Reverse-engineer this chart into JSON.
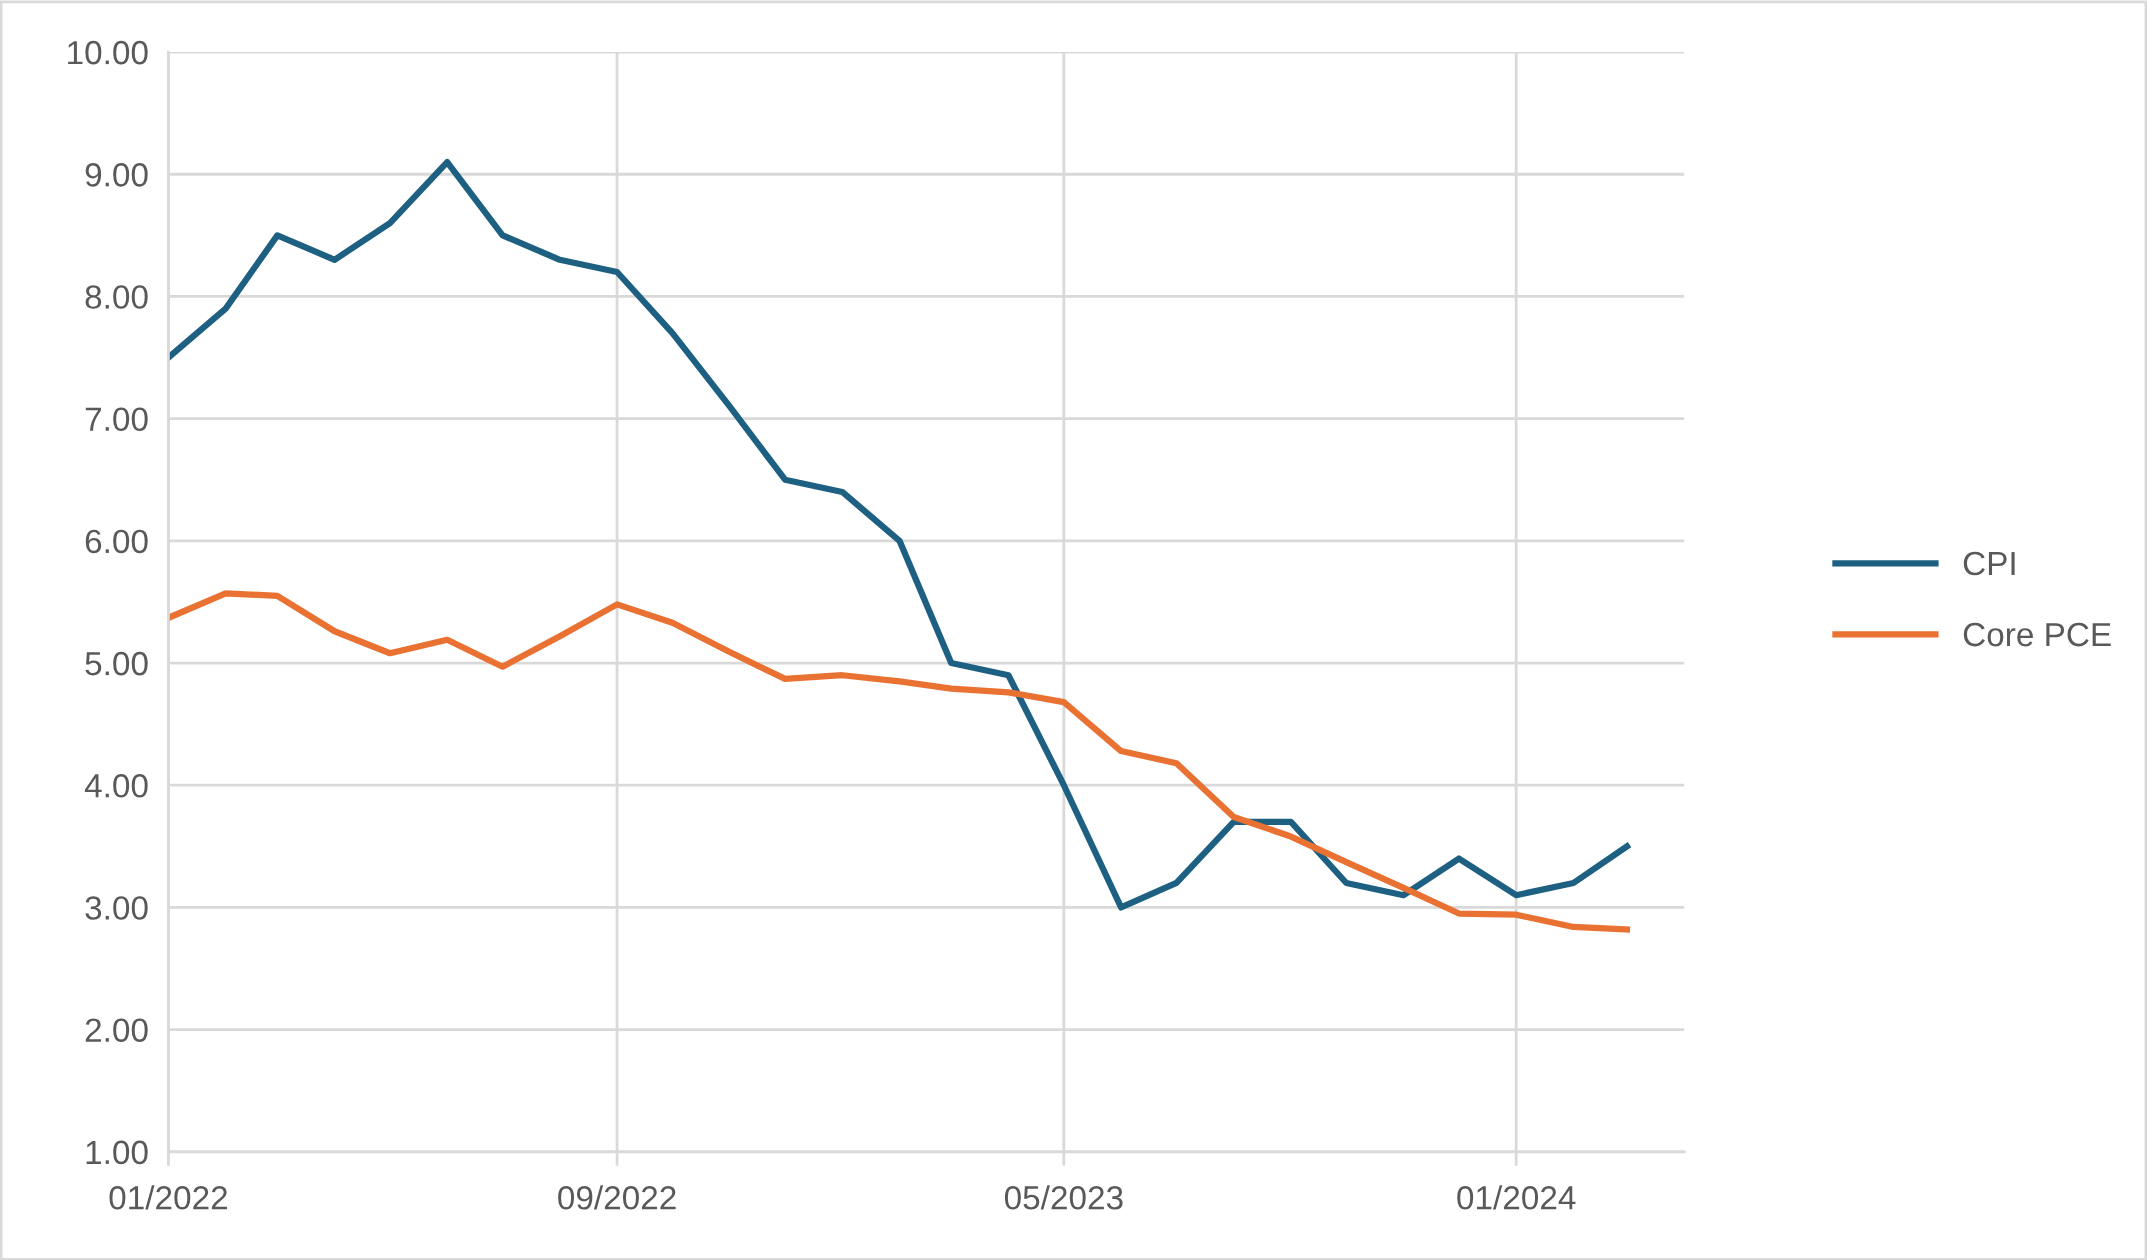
{
  "chart_data": {
    "type": "line",
    "x": [
      "2022-01",
      "2022-02",
      "2022-03",
      "2022-04",
      "2022-05",
      "2022-06",
      "2022-07",
      "2022-08",
      "2022-09",
      "2022-10",
      "2022-11",
      "2022-12",
      "2023-01",
      "2023-02",
      "2023-03",
      "2023-04",
      "2023-05",
      "2023-06",
      "2023-07",
      "2023-08",
      "2023-09",
      "2023-10",
      "2023-11",
      "2023-12",
      "2024-01",
      "2024-02",
      "2024-03"
    ],
    "series": [
      {
        "name": "CPI",
        "color": "#1d6082",
        "values": [
          7.5,
          7.9,
          8.5,
          8.3,
          8.6,
          9.1,
          8.5,
          8.3,
          8.2,
          7.7,
          7.1,
          6.5,
          6.4,
          6.0,
          5.0,
          4.9,
          4.0,
          3.0,
          3.2,
          3.7,
          3.7,
          3.2,
          3.1,
          3.4,
          3.1,
          3.2,
          3.5
        ]
      },
      {
        "name": "Core PCE",
        "color": "#e97132",
        "values": [
          5.37,
          5.57,
          5.55,
          5.26,
          5.08,
          5.19,
          4.97,
          5.22,
          5.48,
          5.33,
          5.09,
          4.87,
          4.9,
          4.85,
          4.79,
          4.76,
          4.68,
          4.28,
          4.18,
          3.74,
          3.58,
          3.37,
          3.16,
          2.95,
          2.94,
          2.84,
          2.82
        ]
      }
    ],
    "xlim": [
      "2022-01",
      "2024-04"
    ],
    "xticks": [
      {
        "value": "2022-01",
        "label": "01/2022"
      },
      {
        "value": "2022-09",
        "label": "09/2022"
      },
      {
        "value": "2023-05",
        "label": "05/2023"
      },
      {
        "value": "2024-01",
        "label": "01/2024"
      }
    ],
    "ylim": [
      1,
      10
    ],
    "yticks": [
      {
        "value": 1,
        "label": "1.00"
      },
      {
        "value": 2,
        "label": "2.00"
      },
      {
        "value": 3,
        "label": "3.00"
      },
      {
        "value": 4,
        "label": "4.00"
      },
      {
        "value": 5,
        "label": "5.00"
      },
      {
        "value": 6,
        "label": "6.00"
      },
      {
        "value": 7,
        "label": "7.00"
      },
      {
        "value": 8,
        "label": "8.00"
      },
      {
        "value": 9,
        "label": "9.00"
      },
      {
        "value": 10,
        "label": "10.00"
      }
    ],
    "grid": true,
    "legend": "right",
    "marker": "none",
    "line_style": "solid"
  }
}
